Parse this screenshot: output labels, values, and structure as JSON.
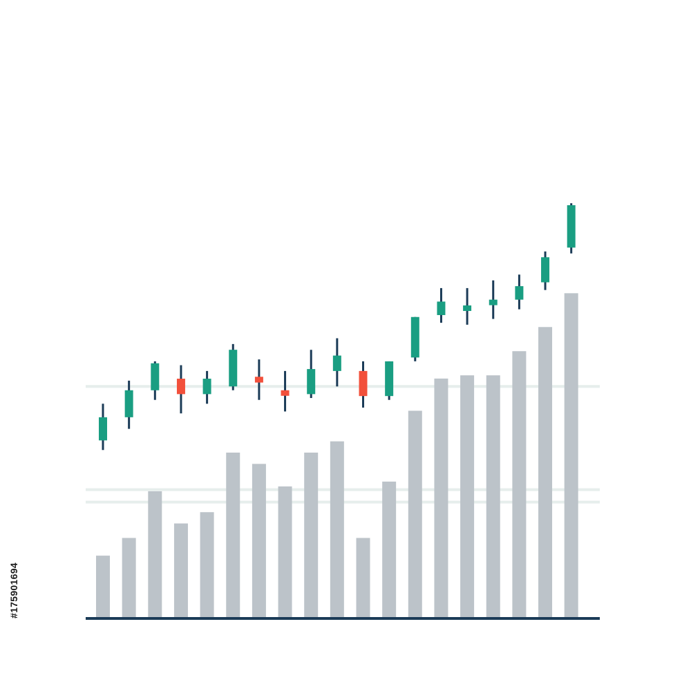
{
  "chart_data": {
    "type": "candlestick-volume",
    "title": "",
    "xlabel": "",
    "ylabel": "",
    "grid": true,
    "price_ylim": [
      0,
      100
    ],
    "price_gridlines": [
      30,
      60
    ],
    "volume_ylim": [
      0,
      100
    ],
    "volume_gridlines": [
      40
    ],
    "candles": [
      {
        "open": 46,
        "close": 52,
        "high": 55.5,
        "low": 43.5
      },
      {
        "open": 52,
        "close": 59,
        "high": 61.5,
        "low": 49
      },
      {
        "open": 59,
        "close": 66,
        "high": 66.5,
        "low": 56.5
      },
      {
        "open": 62,
        "close": 58,
        "high": 65.5,
        "low": 53
      },
      {
        "open": 58,
        "close": 62,
        "high": 64,
        "low": 55.5
      },
      {
        "open": 60,
        "close": 69.5,
        "high": 71,
        "low": 59
      },
      {
        "open": 62.5,
        "close": 61,
        "high": 67,
        "low": 56.5
      },
      {
        "open": 59,
        "close": 58,
        "high": 64,
        "low": 53.5
      },
      {
        "open": 58,
        "close": 64.5,
        "high": 69.5,
        "low": 57
      },
      {
        "open": 64,
        "close": 68,
        "high": 72.5,
        "low": 60
      },
      {
        "open": 64,
        "close": 57.5,
        "high": 66.5,
        "low": 54.5
      },
      {
        "open": 57.5,
        "close": 66.5,
        "high": 66.5,
        "low": 56.5
      },
      {
        "open": 67.5,
        "close": 78,
        "high": 78,
        "low": 66.5
      },
      {
        "open": 78.5,
        "close": 82,
        "high": 85.5,
        "low": 76.5
      },
      {
        "open": 80,
        "close": 81,
        "high": 85.5,
        "low": 76
      },
      {
        "open": 81.5,
        "close": 82.5,
        "high": 87.5,
        "low": 77.5
      },
      {
        "open": 82.5,
        "close": 86,
        "high": 89,
        "low": 80
      },
      {
        "open": 87,
        "close": 93.5,
        "high": 95,
        "low": 85
      },
      {
        "open": 96,
        "close": 107,
        "high": 107.5,
        "low": 94.5
      }
    ],
    "volume": [
      19.5,
      25,
      39.5,
      29.5,
      33,
      51.5,
      48,
      41,
      51.5,
      55,
      25,
      42.5,
      64.5,
      74.5,
      75.5,
      75.5,
      83,
      90.5,
      101
    ],
    "colors": {
      "up": "#1a9e82",
      "down": "#f2503b",
      "wick": "#1b3b57",
      "volume": "#bcc3c9",
      "grid": "#e6eeec",
      "axis": "#1b3b57"
    }
  },
  "watermark_id": "#175901694"
}
